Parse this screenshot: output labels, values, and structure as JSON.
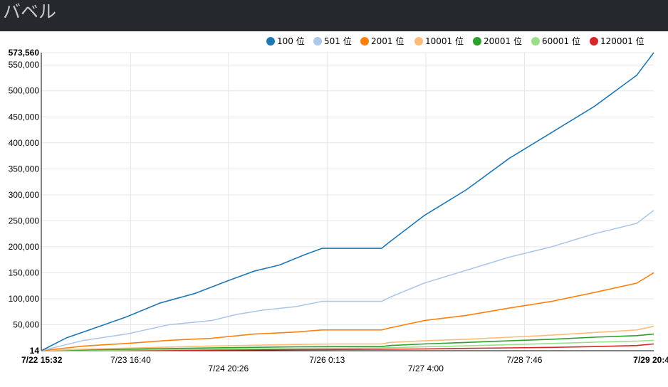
{
  "page": {
    "title": "バベル"
  },
  "chart_data": {
    "type": "line",
    "ylim": [
      14,
      573560
    ],
    "y_ticks": [
      50000,
      100000,
      150000,
      200000,
      250000,
      300000,
      350000,
      400000,
      450000,
      500000,
      550000
    ],
    "y_tick_labels": [
      "50,000",
      "100,000",
      "150,000",
      "200,000",
      "250,000",
      "300,000",
      "350,000",
      "400,000",
      "450,000",
      "500,000",
      "550,000"
    ],
    "y_min_label": "14",
    "y_max_label": "573,560",
    "x_range": [
      0,
      7.2
    ],
    "x_ticks": [
      {
        "x": 0,
        "label": "7/22 15:32",
        "row": 0,
        "bold": true
      },
      {
        "x": 1.05,
        "label": "7/23 16:40",
        "row": 0,
        "bold": false
      },
      {
        "x": 2.2,
        "label": "7/24 20:26",
        "row": 1,
        "bold": false
      },
      {
        "x": 3.36,
        "label": "7/26 0:13",
        "row": 0,
        "bold": false
      },
      {
        "x": 4.52,
        "label": "7/27 4:00",
        "row": 1,
        "bold": false
      },
      {
        "x": 5.68,
        "label": "7/28 7:46",
        "row": 0,
        "bold": false
      },
      {
        "x": 7.2,
        "label": "7/29 20:4",
        "row": 0,
        "bold": true
      }
    ],
    "legend_position": "top-right",
    "grid": true,
    "series": [
      {
        "name": "100 位",
        "color": "#1f77b4",
        "x": [
          0,
          0.3,
          0.6,
          1.0,
          1.4,
          1.8,
          2.2,
          2.5,
          2.8,
          3.1,
          3.3,
          3.5,
          4.0,
          4.1,
          4.5,
          5.0,
          5.5,
          6.0,
          6.5,
          7.0,
          7.2
        ],
        "values": [
          14,
          25000,
          42000,
          65000,
          92000,
          110000,
          135000,
          153000,
          165000,
          185000,
          197000,
          197000,
          197000,
          210000,
          260000,
          310000,
          370000,
          420000,
          470000,
          530000,
          573560
        ]
      },
      {
        "name": "501 位",
        "color": "#aec7e8",
        "x": [
          0,
          0.5,
          1.0,
          1.5,
          2.0,
          2.3,
          2.6,
          3.0,
          3.3,
          3.5,
          4.0,
          4.1,
          4.5,
          5.0,
          5.5,
          6.0,
          6.5,
          7.0,
          7.2
        ],
        "values": [
          14,
          20000,
          32000,
          50000,
          58000,
          70000,
          78000,
          85000,
          95000,
          95000,
          95000,
          103000,
          130000,
          155000,
          180000,
          200000,
          225000,
          245000,
          270000
        ]
      },
      {
        "name": "2001 位",
        "color": "#ff7f0e",
        "x": [
          0,
          0.5,
          1.0,
          1.5,
          2.0,
          2.5,
          3.0,
          3.3,
          3.5,
          4.0,
          4.1,
          4.5,
          5.0,
          5.5,
          6.0,
          6.5,
          7.0,
          7.2
        ],
        "values": [
          14,
          9000,
          14000,
          20000,
          24000,
          32000,
          36000,
          40000,
          40000,
          40000,
          44000,
          58000,
          68000,
          82000,
          95000,
          112000,
          130000,
          150000
        ]
      },
      {
        "name": "10001 位",
        "color": "#ffbb78",
        "x": [
          0,
          0.5,
          1.0,
          2.0,
          3.0,
          3.5,
          4.0,
          4.1,
          4.5,
          5.0,
          5.5,
          6.0,
          6.5,
          7.0,
          7.2
        ],
        "values": [
          14,
          3000,
          5000,
          9000,
          12000,
          13000,
          13000,
          16000,
          19000,
          22000,
          26000,
          30000,
          35000,
          40000,
          47000
        ]
      },
      {
        "name": "20001 位",
        "color": "#2ca02c",
        "x": [
          0,
          1.0,
          2.0,
          3.0,
          3.5,
          4.0,
          4.1,
          4.5,
          5.0,
          5.5,
          6.0,
          6.5,
          7.0,
          7.2
        ],
        "values": [
          14,
          3000,
          5500,
          7500,
          8000,
          8000,
          10000,
          13000,
          16000,
          19000,
          22000,
          26000,
          29000,
          32000
        ]
      },
      {
        "name": "60001 位",
        "color": "#98df8a",
        "x": [
          0,
          1.0,
          2.0,
          3.0,
          4.0,
          4.5,
          5.0,
          5.5,
          6.0,
          6.5,
          7.0,
          7.2
        ],
        "values": [
          14,
          1500,
          3000,
          4500,
          5500,
          7500,
          9500,
          11500,
          14000,
          16500,
          18500,
          20000
        ]
      },
      {
        "name": "120001 位",
        "color": "#d62728",
        "x": [
          0,
          1.0,
          2.0,
          3.0,
          4.0,
          4.5,
          5.0,
          5.5,
          6.0,
          6.5,
          7.0,
          7.2
        ],
        "values": [
          14,
          500,
          1200,
          2000,
          2800,
          3500,
          4500,
          5500,
          6500,
          8000,
          10000,
          13000
        ]
      }
    ]
  }
}
